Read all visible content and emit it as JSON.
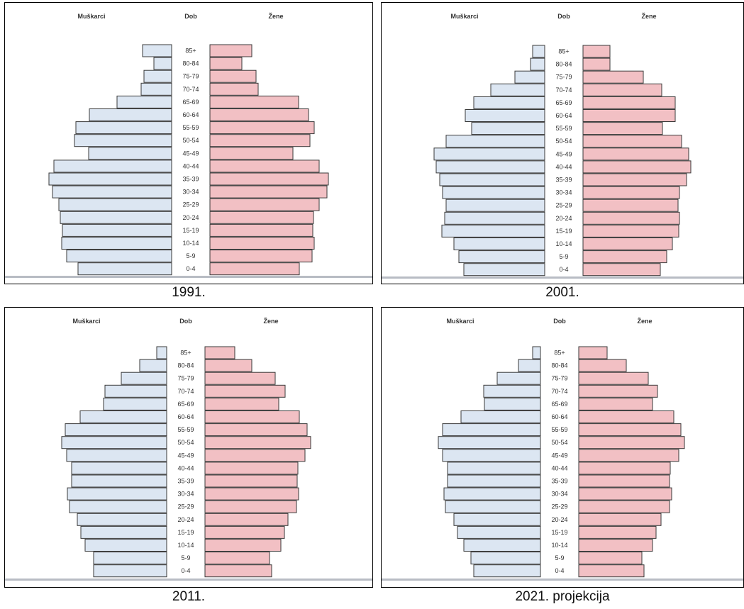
{
  "chart_data": [
    {
      "type": "bar",
      "caption": "1991.",
      "header_left": "Muškarci",
      "header_center": "Dob",
      "header_right": "Žene",
      "categories": [
        "85+",
        "80-84",
        "75-79",
        "70-74",
        "65-69",
        "60-64",
        "55-59",
        "50-54",
        "45-49",
        "40-44",
        "35-39",
        "30-34",
        "25-29",
        "20-24",
        "15-19",
        "10-14",
        "5-9",
        "0-4"
      ],
      "series": [
        {
          "values": [
            41,
            25,
            39,
            43,
            77,
            116,
            135,
            137,
            117,
            166,
            173,
            168,
            159,
            157,
            154,
            155,
            148,
            132
          ]
        },
        {
          "values": [
            59,
            45,
            65,
            68,
            125,
            139,
            147,
            141,
            117,
            154,
            167,
            165,
            154,
            146,
            145,
            147,
            144,
            126
          ]
        }
      ],
      "colors": {
        "male": "#dce6f2",
        "female": "#f2c0c4",
        "outline": "#3a3a3a"
      }
    },
    {
      "type": "bar",
      "caption": "2001.",
      "header_left": "Muškarci",
      "header_center": "Dob",
      "header_right": "Žene",
      "categories": [
        "85+",
        "80-84",
        "75-79",
        "70-74",
        "65-69",
        "60-64",
        "55-59",
        "50-54",
        "45-49",
        "40-44",
        "35-39",
        "30-34",
        "25-29",
        "20-24",
        "15-19",
        "10-14",
        "5-9",
        "0-4"
      ],
      "series": [
        {
          "values": [
            17,
            20,
            42,
            76,
            100,
            112,
            103,
            139,
            156,
            153,
            148,
            144,
            139,
            141,
            145,
            128,
            121,
            114
          ]
        },
        {
          "values": [
            38,
            38,
            85,
            111,
            130,
            130,
            112,
            139,
            149,
            152,
            146,
            136,
            134,
            136,
            135,
            126,
            118,
            109
          ]
        }
      ],
      "colors": {
        "male": "#dce6f2",
        "female": "#f2c0c4",
        "outline": "#3a3a3a"
      }
    },
    {
      "type": "bar",
      "caption": "2011.",
      "header_left": "Muškarci",
      "header_center": "Dob",
      "header_right": "Žene",
      "categories": [
        "85+",
        "80-84",
        "75-79",
        "70-74",
        "65-69",
        "60-64",
        "55-59",
        "50-54",
        "45-49",
        "40-44",
        "35-39",
        "30-34",
        "25-29",
        "20-24",
        "15-19",
        "10-14",
        "5-9",
        "0-4"
      ],
      "series": [
        {
          "values": [
            14,
            38,
            64,
            87,
            89,
            122,
            143,
            148,
            141,
            134,
            134,
            140,
            137,
            126,
            121,
            115,
            103,
            103
          ]
        },
        {
          "values": [
            42,
            66,
            99,
            113,
            104,
            133,
            144,
            149,
            141,
            131,
            130,
            132,
            129,
            117,
            112,
            107,
            91,
            94
          ]
        }
      ],
      "colors": {
        "male": "#dce6f2",
        "female": "#f2c0c4",
        "outline": "#3a3a3a"
      }
    },
    {
      "type": "bar",
      "caption": "2021. projekcija",
      "header_left": "Muškarci",
      "header_center": "Dob",
      "header_right": "Žene",
      "categories": [
        "85+",
        "80-84",
        "75-79",
        "70-74",
        "65-69",
        "60-64",
        "55-59",
        "50-54",
        "45-49",
        "40-44",
        "35-39",
        "30-34",
        "25-29",
        "20-24",
        "15-19",
        "10-14",
        "5-9",
        "0-4"
      ],
      "series": [
        {
          "values": [
            11,
            31,
            61,
            80,
            79,
            112,
            138,
            144,
            138,
            131,
            131,
            136,
            134,
            122,
            117,
            108,
            98,
            94
          ]
        },
        {
          "values": [
            40,
            67,
            98,
            111,
            104,
            134,
            144,
            149,
            141,
            129,
            128,
            131,
            128,
            116,
            109,
            104,
            89,
            92
          ]
        }
      ],
      "colors": {
        "male": "#dce6f2",
        "female": "#f2c0c4",
        "outline": "#3a3a3a"
      }
    }
  ]
}
